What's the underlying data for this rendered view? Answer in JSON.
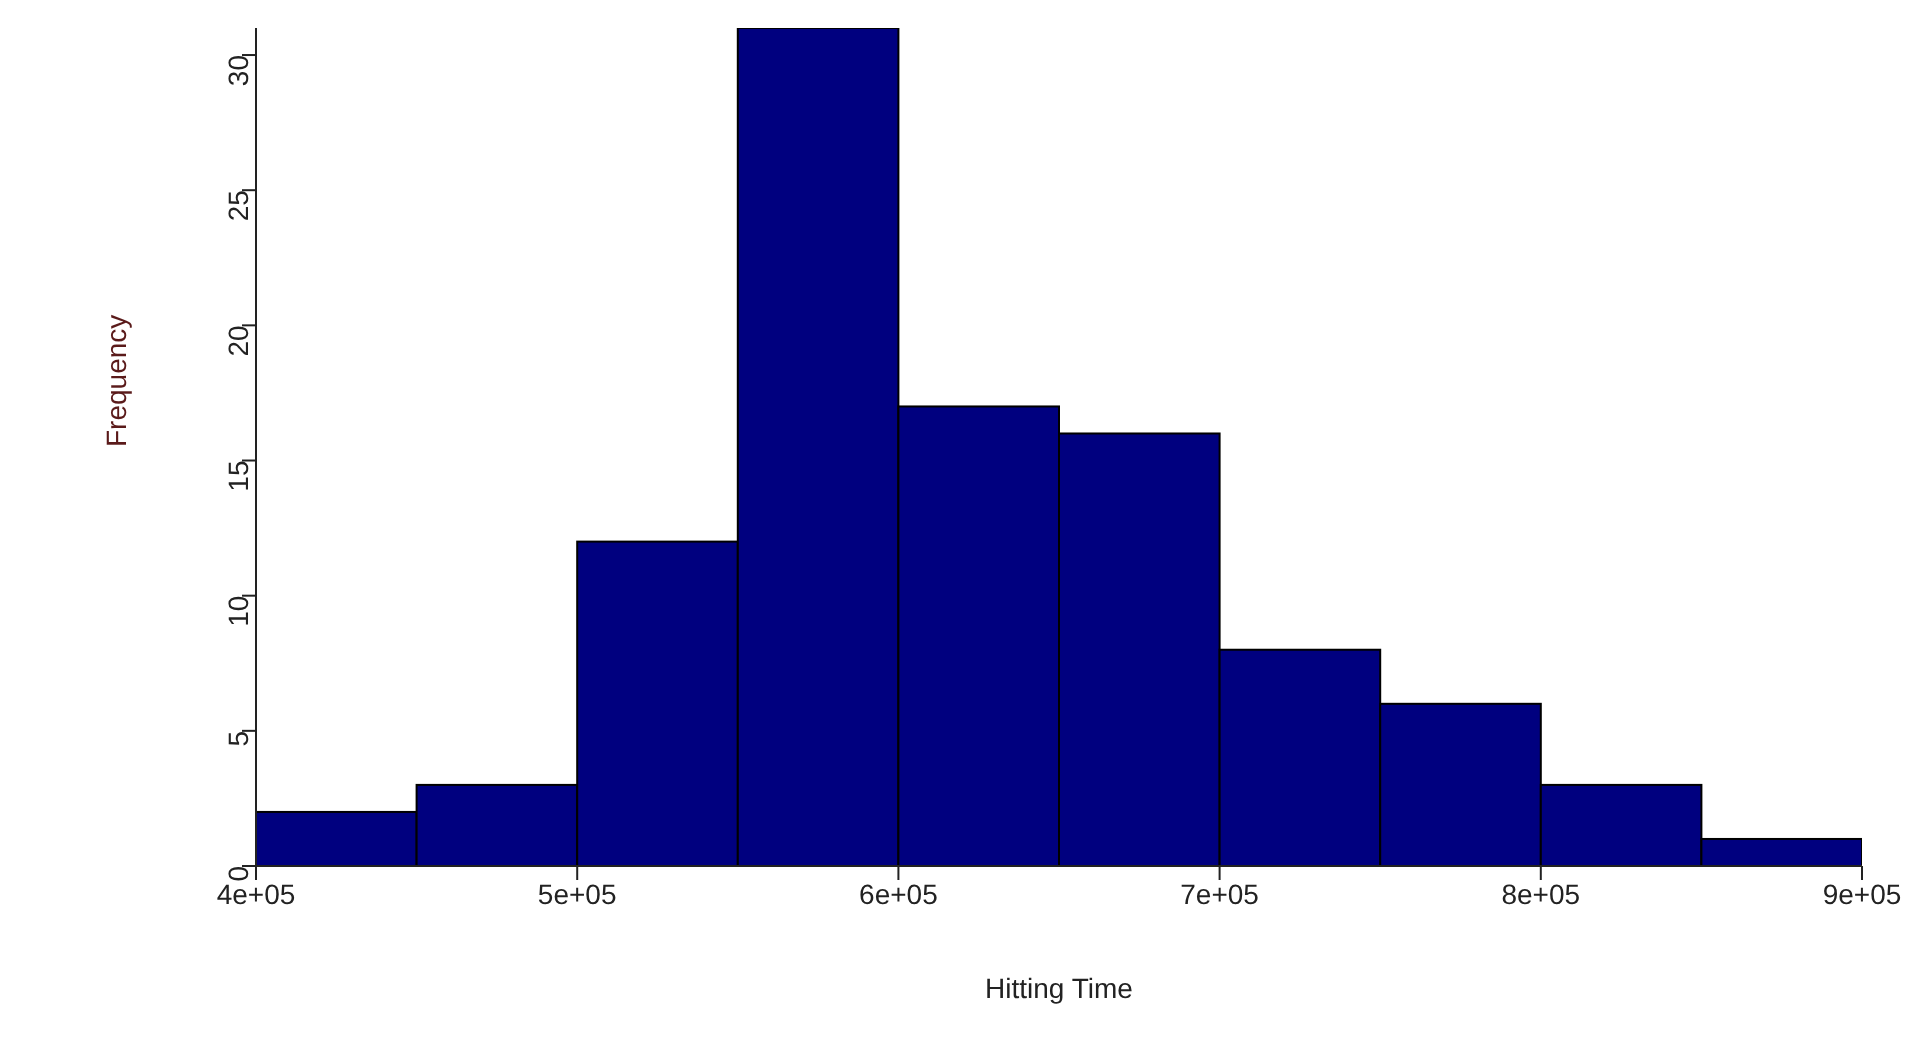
{
  "chart_data": {
    "type": "histogram",
    "xlabel": "Hitting Time",
    "ylabel": "Frequency",
    "color": "#00007f",
    "bins": [
      400000,
      450000,
      500000,
      550000,
      600000,
      650000,
      700000,
      750000,
      800000,
      850000,
      900000
    ],
    "values": [
      2,
      3,
      12,
      31,
      17,
      16,
      8,
      6,
      3,
      1
    ],
    "xlim": [
      400000,
      900000
    ],
    "xticks": [
      {
        "value": 400000,
        "label": "4e+05"
      },
      {
        "value": 500000,
        "label": "5e+05"
      },
      {
        "value": 600000,
        "label": "6e+05"
      },
      {
        "value": 700000,
        "label": "7e+05"
      },
      {
        "value": 800000,
        "label": "8e+05"
      },
      {
        "value": 900000,
        "label": "9e+05"
      }
    ],
    "ylim": [
      0,
      31
    ],
    "yticks": [
      0,
      5,
      10,
      15,
      20,
      25,
      30
    ],
    "grid": false,
    "legend": false
  }
}
